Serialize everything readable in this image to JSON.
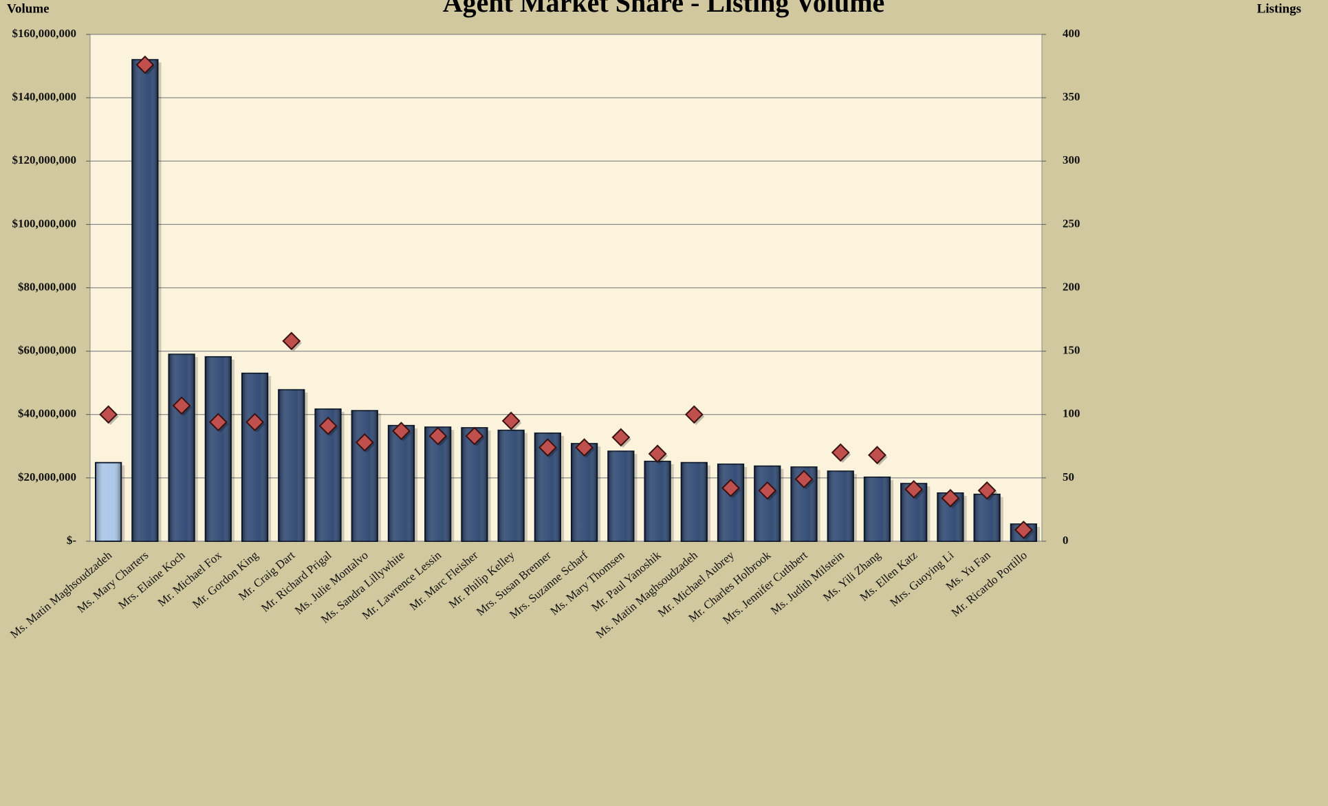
{
  "chart_data": {
    "type": "bar",
    "title": "Agent Market Share - Listing Volume",
    "y_label": "Volume",
    "y2_label": "Listings",
    "categories": [
      "Ms. Matin Maghsoudzadeh",
      "Ms. Mary Charters",
      "Mrs. Elaine Koch",
      "Mr. Michael Fox",
      "Mr. Gordon King",
      "Mr. Craig Dart",
      "Mr. Richard Prigal",
      "Ms. Julie Montalvo",
      "Ms. Sandra Lillywhite",
      "Mr. Lawrence Lessin",
      "Mr. Marc Fleisher",
      "Mr. Philip Kelley",
      "Mrs. Susan Brenner",
      "Mrs. Suzanne Scharf",
      "Ms. Mary Thomsen",
      "Mr. Paul Yanoshik",
      "Ms. Matin Maghsoudzadeh",
      "Mr. Michael Aubrey",
      "Mr. Charles Holbrook",
      "Mrs. Jennifer Cuthbert",
      "Ms. Judith Milstein",
      "Ms. Yili Zhang",
      "Ms. Ellen Katz",
      "Mrs. Guoying Li",
      "Ms. Yu Fan",
      "Mr. Ricardo Portillo"
    ],
    "series": [
      {
        "type": "bar",
        "axis": "y",
        "colors": [
          "#a7c4e6",
          "#2b4570",
          "#2b4570",
          "#2b4570",
          "#2b4570",
          "#2b4570",
          "#2b4570",
          "#2b4570",
          "#2b4570",
          "#2b4570",
          "#2b4570",
          "#2b4570",
          "#2b4570",
          "#2b4570",
          "#2b4570",
          "#2b4570",
          "#2b4570",
          "#2b4570",
          "#2b4570",
          "#2b4570",
          "#2b4570",
          "#2b4570",
          "#2b4570",
          "#2b4570",
          "#2b4570",
          "#2b4570"
        ],
        "values": [
          24800000,
          152000000,
          59000000,
          58200000,
          53000000,
          47800000,
          41700000,
          41200000,
          36500000,
          36000000,
          35800000,
          35000000,
          34100000,
          30800000,
          28400000,
          25200000,
          24800000,
          24300000,
          23700000,
          23400000,
          22100000,
          20200000,
          18200000,
          15200000,
          14800000,
          5400000
        ]
      },
      {
        "type": "scatter",
        "axis": "y2",
        "color": "#c0504d",
        "values": [
          100,
          376,
          107,
          94,
          94,
          158,
          91,
          78,
          87,
          83,
          83,
          95,
          74,
          74,
          82,
          69,
          100,
          42,
          40,
          49,
          70,
          68,
          41,
          34,
          40,
          9
        ]
      }
    ],
    "ylim": [
      0,
      160000000
    ],
    "yticks": [
      {
        "value": 0,
        "label": "$-"
      },
      {
        "value": 20000000,
        "label": "$20,000,000"
      },
      {
        "value": 40000000,
        "label": "$40,000,000"
      },
      {
        "value": 60000000,
        "label": "$60,000,000"
      },
      {
        "value": 80000000,
        "label": "$80,000,000"
      },
      {
        "value": 100000000,
        "label": "$100,000,000"
      },
      {
        "value": 120000000,
        "label": "$120,000,000"
      },
      {
        "value": 140000000,
        "label": "$140,000,000"
      },
      {
        "value": 160000000,
        "label": "$160,000,000"
      }
    ],
    "y2lim": [
      0,
      400
    ],
    "y2ticks": [
      0,
      50,
      100,
      150,
      200,
      250,
      300,
      350,
      400
    ],
    "grid": true
  }
}
